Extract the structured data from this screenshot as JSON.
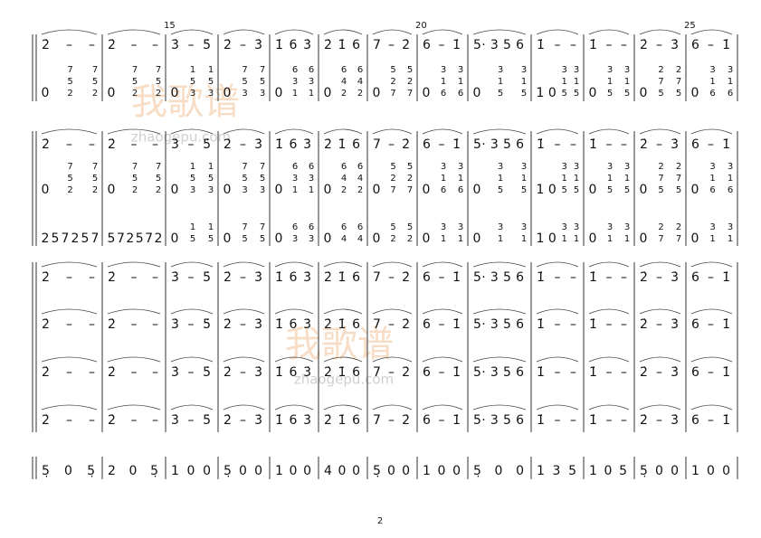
{
  "measure_numbers": [
    "15",
    "20",
    "25"
  ],
  "watermark": {
    "title": "我歌谱",
    "site": "zhaogepu.com"
  },
  "page_number": "2",
  "systems": [
    {
      "rows": [
        [
          "2̇ – –",
          "2̇ – –",
          "3̇ – 5̇",
          "2̇ – 3̇",
          "1̇ 6 3̇",
          "2̇ 1̇ 6",
          "7 – 2̇",
          "6 – 1̇",
          "5· 3 5 6",
          "1̇ – –",
          "1̇ – –",
          "2̇ – 3̇",
          "6 – 1̇"
        ],
        [
          [
            "0",
            "752",
            "752"
          ],
          [
            "0",
            "752",
            "752"
          ],
          [
            "0",
            "153",
            "153"
          ],
          [
            "0",
            "753",
            "753"
          ],
          [
            "0",
            "631",
            "631"
          ],
          [
            "0",
            "642",
            "642"
          ],
          [
            "0",
            "527",
            "527"
          ],
          [
            "0",
            "316",
            "316"
          ],
          [
            "0",
            "315",
            "315"
          ],
          [
            "1",
            "0",
            "315",
            "315"
          ],
          [
            "0",
            "315",
            "315"
          ],
          [
            "0",
            "275",
            "275"
          ],
          [
            "0",
            "316",
            "316"
          ]
        ]
      ]
    },
    {
      "rows": [
        [
          "2̇ – –",
          "2̇ – –",
          "3̇ – 5̇",
          "2̇ – 3̇",
          "1̇ 6 3̇",
          "2̇ 1̇ 6",
          "7 – 2̇",
          "6 – 1̇",
          "5· 3 5 6",
          "1̇ – –",
          "1̇ – –",
          "2̇ – 3̇",
          "6 – 1̇"
        ],
        [
          [
            "0",
            "752",
            "752"
          ],
          [
            "0",
            "752",
            "752"
          ],
          [
            "0",
            "153",
            "153"
          ],
          [
            "0",
            "753",
            "753"
          ],
          [
            "0",
            "631",
            "631"
          ],
          [
            "0",
            "642",
            "642"
          ],
          [
            "0",
            "527",
            "527"
          ],
          [
            "0",
            "316",
            "316"
          ],
          [
            "0",
            "315",
            "315"
          ],
          [
            "1",
            "0",
            "315",
            "315"
          ],
          [
            "0",
            "315",
            "315"
          ],
          [
            "0",
            "275",
            "275"
          ],
          [
            "0",
            "316",
            "316"
          ]
        ],
        [
          [
            "2",
            "5",
            "7",
            "2",
            "5",
            "7"
          ],
          [
            "5",
            "7",
            "2",
            "5",
            "7",
            "2"
          ],
          [
            "0",
            "15",
            "15"
          ],
          [
            "0",
            "75",
            "75"
          ],
          [
            "0",
            "63",
            "63"
          ],
          [
            "0",
            "64",
            "64"
          ],
          [
            "0",
            "52",
            "52"
          ],
          [
            "0",
            "31",
            "31"
          ],
          [
            "0",
            "31",
            "31"
          ],
          [
            "1",
            "0",
            "31",
            "31"
          ],
          [
            "0",
            "31",
            "31"
          ],
          [
            "0",
            "27",
            "27"
          ],
          [
            "0",
            "31",
            "31"
          ]
        ]
      ]
    },
    {
      "rows": [
        [
          "2̇ – –",
          "2̇ – –",
          "3̇ – 5̇",
          "2̇ – 3̇",
          "1̇ 6 3̇",
          "2̇ 1̇ 6",
          "7 – 2̇",
          "6 – 1̇",
          "5· 3 5 6",
          "1̇ – –",
          "1̇ – –",
          "2̇ – 3̇",
          "6 – 1̇"
        ],
        [
          "2̇ – –",
          "2̇ – –",
          "3̇ – 5̇",
          "2̇ – 3̇",
          "1̇ 6 3̇",
          "2̇ 1̇ 6",
          "7 – 2̇",
          "6 – 1̇",
          "5· 3 5 6",
          "1̇ – –",
          "1̇ – –",
          "2̇ – 3̇",
          "6 – 1̇"
        ],
        [
          "2̇ – –",
          "2̇ – –",
          "3̇ – 5̇",
          "2̇ – 3̇",
          "1̇ 6 3̇",
          "2̇ 1̇ 6",
          "7 – 2̇",
          "6 – 1̇",
          "5· 3 5 6",
          "1̇ – –",
          "1̇ – –",
          "2̇ – 3̇",
          "6 – 1̇"
        ],
        [
          "2̇ – –",
          "2̇ – –",
          "3̇ – 5̇",
          "2̇ – 3̇",
          "1̇ 6 3̇",
          "2̇ 1̇ 6",
          "7 – 2̇",
          "6 – 1̇",
          "5· 3 5 6",
          "1̇ – –",
          "1̇ – –",
          "2̇ – 3̇",
          "6 – 1̇"
        ],
        [
          "5̣ 0 5̣",
          "2 0 5̣",
          "1 0 0",
          "5̣ 0 0",
          "1 0 0",
          "4 0 0",
          "5̣ 0 0",
          "1 0 0",
          "5̣ 0 0",
          "1 3 5",
          "1 0 5",
          "5̣ 0 0",
          "1 0 0"
        ]
      ]
    }
  ]
}
